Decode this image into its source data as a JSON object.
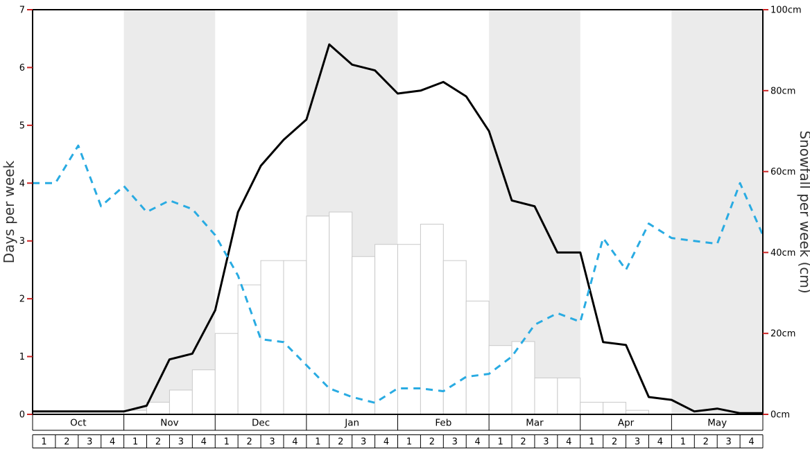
{
  "chart_data": {
    "type": "line+bar",
    "title": "",
    "months": [
      "Oct",
      "Nov",
      "Dec",
      "Jan",
      "Feb",
      "Mar",
      "Apr",
      "May"
    ],
    "week_labels": [
      "1",
      "2",
      "3",
      "4"
    ],
    "left_axis": {
      "label": "Days per week",
      "min": 0,
      "max": 7,
      "tick_values": [
        0,
        1,
        2,
        3,
        4,
        5,
        6,
        7
      ],
      "tick_labels": [
        "0",
        "1",
        "2",
        "3",
        "4",
        "5",
        "6",
        "7"
      ]
    },
    "right_axis": {
      "label": "Snowfall per week (cm)",
      "min": 0,
      "max": 100,
      "tick_values": [
        0,
        20,
        40,
        60,
        80,
        100
      ],
      "tick_labels": [
        "0cm",
        "20cm",
        "40cm",
        "60cm",
        "80cm",
        "100cm"
      ]
    },
    "shading": {
      "band_color": "#ebebeb",
      "shaded_month_indices": [
        1,
        3,
        5,
        7
      ]
    },
    "styles": {
      "tick_color": "#cc2222",
      "border_color": "#000000",
      "bar_fill": "#ffffff",
      "bar_stroke": "#c9c9c9",
      "grid_line_color": "#000000"
    },
    "series": [
      {
        "id": "days-per-week-solid-line",
        "type": "line",
        "axis": "left",
        "color": "#000000",
        "dashed": false,
        "stroke_width": 3,
        "values": [
          0.05,
          0.05,
          0.05,
          0.05,
          0.15,
          0.95,
          1.05,
          1.8,
          3.5,
          4.3,
          4.75,
          5.1,
          6.4,
          6.05,
          5.95,
          5.55,
          5.6,
          5.75,
          5.5,
          4.9,
          3.7,
          3.6,
          2.8,
          2.8,
          1.25,
          1.2,
          0.3,
          0.25,
          0.05,
          0.1,
          0.02,
          0.02
        ]
      },
      {
        "id": "days-per-week-dashed-line",
        "type": "line",
        "axis": "left",
        "color": "#29abe2",
        "dashed": true,
        "stroke_width": 3,
        "values": [
          4.0,
          4.65,
          3.6,
          3.95,
          3.5,
          3.7,
          3.55,
          3.1,
          2.4,
          1.3,
          1.25,
          0.85,
          0.45,
          0.3,
          0.2,
          0.45,
          0.45,
          0.4,
          0.65,
          0.7,
          1.0,
          1.55,
          1.75,
          1.6,
          3.05,
          2.5,
          3.3,
          3.05,
          3.0,
          2.95,
          4.0,
          3.1
        ]
      },
      {
        "id": "snowfall-per-week-bars",
        "type": "bar",
        "axis": "right",
        "values": [
          0,
          0,
          0,
          0,
          1,
          3,
          6,
          11,
          20,
          32,
          38,
          38,
          49,
          50,
          39,
          42,
          42,
          47,
          38,
          28,
          17,
          18,
          9,
          9,
          3,
          3,
          1,
          0,
          0,
          0,
          0,
          0
        ]
      }
    ]
  }
}
